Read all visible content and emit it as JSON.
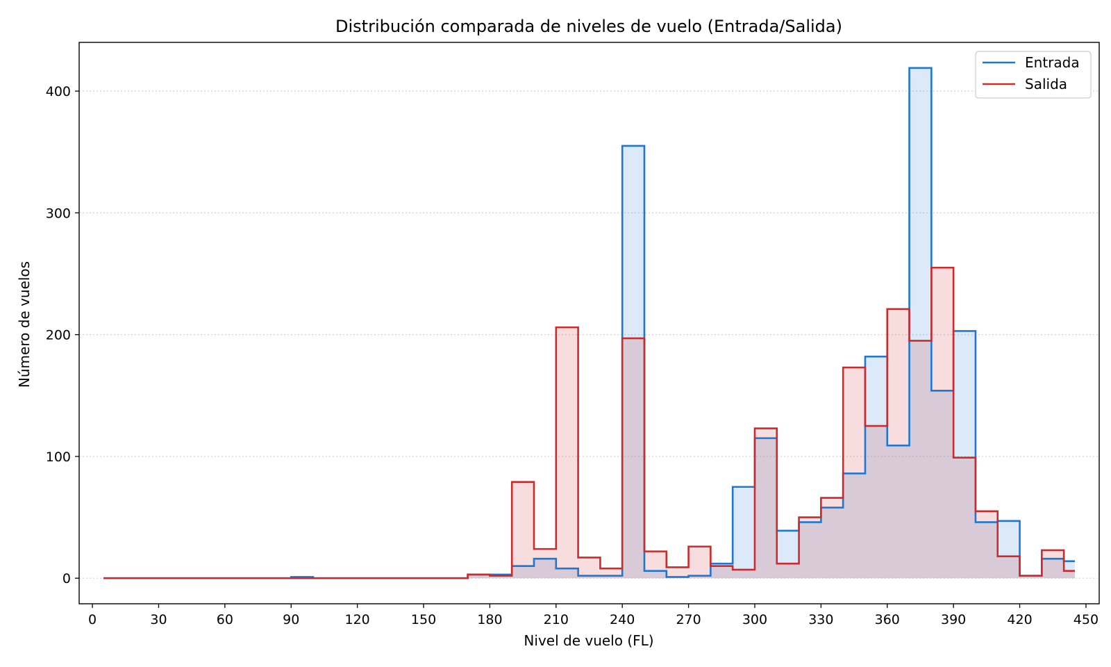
{
  "chart_data": {
    "type": "area",
    "title": "Distribución comparada de niveles de vuelo (Entrada/Salida)",
    "xlabel": "Nivel de vuelo (FL)",
    "ylabel": "Número de vuelos",
    "xlim": [
      -6,
      456
    ],
    "ylim": [
      -21,
      440
    ],
    "xticks": [
      0,
      30,
      60,
      90,
      120,
      150,
      180,
      210,
      240,
      270,
      300,
      330,
      360,
      390,
      420,
      450
    ],
    "yticks": [
      0,
      100,
      200,
      300,
      400
    ],
    "grid": {
      "y": true,
      "x": false,
      "style": "dotted"
    },
    "legend_position": "top-right",
    "bin_edges": [
      5,
      10,
      20,
      30,
      40,
      50,
      60,
      70,
      80,
      90,
      100,
      110,
      120,
      130,
      140,
      150,
      160,
      170,
      180,
      190,
      200,
      210,
      220,
      230,
      240,
      250,
      260,
      270,
      280,
      290,
      300,
      310,
      320,
      330,
      340,
      350,
      360,
      370,
      380,
      390,
      400,
      410,
      420,
      430,
      440,
      445
    ],
    "series": [
      {
        "name": "Entrada",
        "color": "#1f77d2",
        "fill": "#dbe8f6",
        "values": [
          0,
          0,
          0,
          0,
          0,
          0,
          0,
          0,
          0,
          1,
          0,
          0,
          0,
          0,
          0,
          0,
          0,
          3,
          3,
          10,
          16,
          8,
          2,
          2,
          355,
          6,
          1,
          2,
          12,
          75,
          115,
          39,
          46,
          58,
          86,
          182,
          109,
          419,
          154,
          203,
          46,
          47,
          2,
          16,
          14
        ]
      },
      {
        "name": "Salida",
        "color": "#cc2b2b",
        "fill": "#f5d6d8",
        "values": [
          0,
          0,
          0,
          0,
          0,
          0,
          0,
          0,
          0,
          0,
          0,
          0,
          0,
          0,
          0,
          0,
          0,
          3,
          2,
          79,
          24,
          206,
          17,
          8,
          197,
          22,
          9,
          26,
          10,
          7,
          123,
          12,
          50,
          66,
          173,
          125,
          221,
          195,
          255,
          99,
          55,
          18,
          2,
          23,
          6
        ]
      }
    ]
  }
}
